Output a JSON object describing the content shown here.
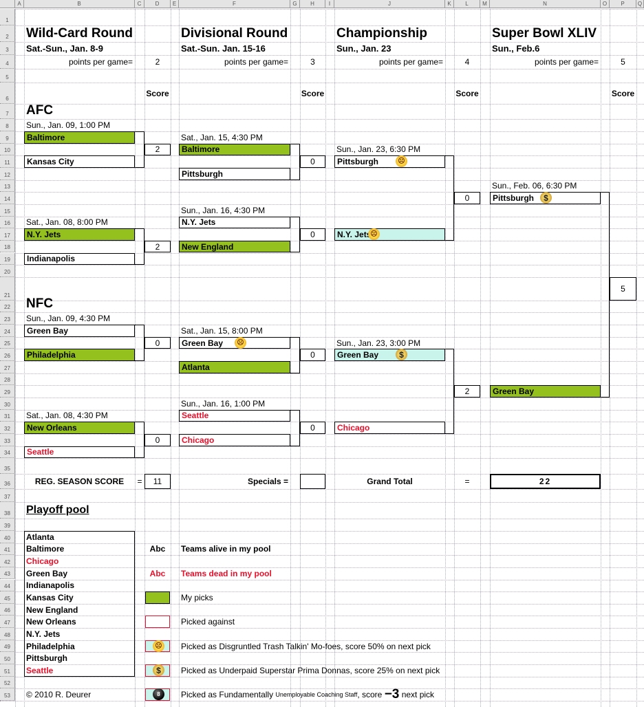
{
  "columns": [
    "A",
    "B",
    "C",
    "D",
    "E",
    "F",
    "G",
    "H",
    "I",
    "J",
    "K",
    "L",
    "M",
    "N",
    "O",
    "P",
    "Q"
  ],
  "score_header": "Score",
  "rounds": [
    {
      "title": "Wild-Card Round",
      "dates": "Sat.-Sun., Jan. 8-9",
      "ppg_label": "points per game=",
      "ppg": "2"
    },
    {
      "title": "Divisional Round",
      "dates": "Sat.-Sun. Jan. 15-16",
      "ppg_label": "points per game=",
      "ppg": "3"
    },
    {
      "title": "Championship",
      "dates": "Sun., Jan. 23",
      "ppg_label": "points per game=",
      "ppg": "4"
    },
    {
      "title": "Super Bowl XLIV",
      "dates": "Sun., Feb.6",
      "ppg_label": "points per game=",
      "ppg": "5"
    }
  ],
  "conferences": {
    "afc": "AFC",
    "nfc": "NFC"
  },
  "games": [
    {
      "date": "Sun., Jan. 09, 1:00 PM",
      "score": "2",
      "teams": [
        {
          "name": "Baltimore",
          "style": "pick"
        },
        {
          "name": "Kansas City",
          "style": "plain"
        }
      ]
    },
    {
      "date": "Sat., Jan. 08, 8:00 PM",
      "score": "2",
      "teams": [
        {
          "name": "N.Y. Jets",
          "style": "pick"
        },
        {
          "name": "Indianapolis",
          "style": "plain"
        }
      ]
    },
    {
      "date": "Sat., Jan. 15, 4:30 PM",
      "score": "0",
      "teams": [
        {
          "name": "Baltimore",
          "style": "pick"
        },
        {
          "name": "Pittsburgh",
          "style": "plain"
        }
      ]
    },
    {
      "date": "Sun., Jan. 16, 4:30 PM",
      "score": "0",
      "teams": [
        {
          "name": "N.Y. Jets",
          "style": "plain"
        },
        {
          "name": "New England",
          "style": "pick"
        }
      ]
    },
    {
      "date": "Sun., Jan. 23, 6:30 PM",
      "score": "0",
      "teams": [
        {
          "name": "Pittsburgh",
          "style": "plain",
          "icon": "trash-talk-face-icon"
        },
        {
          "name": "N.Y. Jets",
          "style": "cyan",
          "icon": "trash-talk-face-icon"
        }
      ]
    },
    {
      "date": "Sun., Feb. 06, 6:30 PM",
      "score": "5",
      "teams": [
        {
          "name": "Pittsburgh",
          "style": "plain",
          "icon": "money-bag-icon"
        },
        {
          "name": "Green Bay",
          "style": "pick"
        }
      ]
    },
    {
      "date": "Sun., Jan. 09, 4:30 PM",
      "score": "0",
      "teams": [
        {
          "name": "Green Bay",
          "style": "plain"
        },
        {
          "name": "Philadelphia",
          "style": "pick"
        }
      ]
    },
    {
      "date": "Sat., Jan. 08, 4:30 PM",
      "score": "0",
      "teams": [
        {
          "name": "New Orleans",
          "style": "pick"
        },
        {
          "name": "Seattle",
          "style": "plain",
          "dead": true
        }
      ]
    },
    {
      "date": "Sat., Jan. 15, 8:00 PM",
      "score": "0",
      "teams": [
        {
          "name": "Green Bay",
          "style": "plain",
          "icon": "trash-talk-face-icon"
        },
        {
          "name": "Atlanta",
          "style": "pick"
        }
      ]
    },
    {
      "date": "Sun., Jan. 16, 1:00 PM",
      "score": "0",
      "teams": [
        {
          "name": "Seattle",
          "style": "plain",
          "dead": true
        },
        {
          "name": "Chicago",
          "style": "plain",
          "dead": true
        }
      ]
    },
    {
      "date": "Sun., Jan. 23, 3:00 PM",
      "score": "2",
      "teams": [
        {
          "name": "Green Bay",
          "style": "cyan",
          "icon": "money-bag-icon"
        },
        {
          "name": "Chicago",
          "style": "plain",
          "dead": true
        }
      ]
    }
  ],
  "totals": {
    "reg_season_label": "REG. SEASON SCORE",
    "equals": "=",
    "reg_season_score": "11",
    "specials_label": "Specials =",
    "specials_value": "",
    "grand_total_label": "Grand Total",
    "grand_total": "22"
  },
  "pool": {
    "title": "Playoff pool",
    "teams": [
      {
        "name": "Atlanta"
      },
      {
        "name": "Baltimore"
      },
      {
        "name": "Chicago",
        "dead": true
      },
      {
        "name": "Green Bay"
      },
      {
        "name": "Indianapolis"
      },
      {
        "name": "Kansas City"
      },
      {
        "name": "New England"
      },
      {
        "name": "New Orleans"
      },
      {
        "name": "N.Y. Jets"
      },
      {
        "name": "Philadelphia"
      },
      {
        "name": "Pittsburgh"
      },
      {
        "name": "Seattle",
        "dead": true
      }
    ]
  },
  "legend": [
    {
      "swatch": "alive-text",
      "swatch_text": "Abc",
      "label": "Teams alive in my pool"
    },
    {
      "swatch": "dead-text",
      "swatch_text": "Abc",
      "label": "Teams dead in my pool"
    },
    {
      "swatch": "pick",
      "label": "My picks"
    },
    {
      "swatch": "against",
      "label": "Picked against"
    },
    {
      "swatch": "trash-talk-face-icon",
      "label": "Picked as Disgruntled Trash Talkin' Mo-foes, score 50% on next pick"
    },
    {
      "swatch": "money-bag-icon",
      "label": "Picked as Underpaid Superstar Prima Donnas, score 25% on next pick"
    },
    {
      "swatch": "eight-ball-icon",
      "label_parts": [
        "Picked as Fundamentally ",
        "Unemployable Coaching Staff",
        ", score ",
        "−3",
        " next pick"
      ]
    }
  ],
  "copyright": "© 2010 R. Deurer",
  "colors": {
    "pick": "#95c11f",
    "cyan": "#c8f4ec",
    "dead": "#e8102a"
  }
}
